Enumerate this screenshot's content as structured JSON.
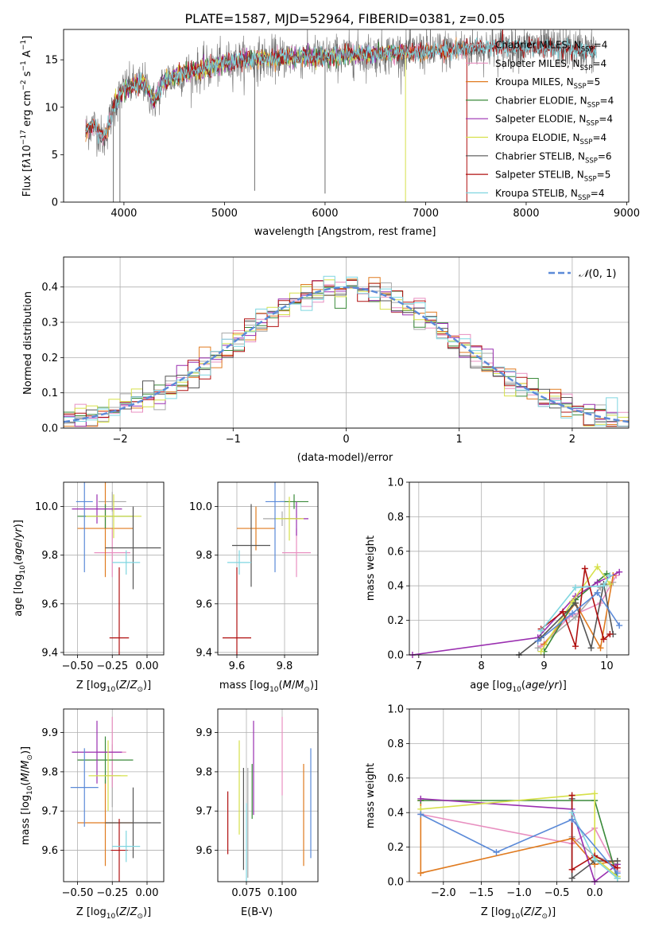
{
  "figure_title": "PLATE=1587, MJD=52964, FIBERID=0381, z=0.05",
  "colors": {
    "Chabrier MILES": "#a9a9a9",
    "Salpeter MILES": "#e88fc0",
    "Kroupa MILES": "#e07b20",
    "Chabrier ELODIE": "#3a8a3a",
    "Salpeter ELODIE": "#9a2fb0",
    "Kroupa ELODIE": "#d6e04a",
    "Chabrier STELIB": "#555555",
    "Salpeter STELIB": "#b01010",
    "Kroupa STELIB": "#7fd6e0",
    "normal": "#5b8ad8",
    "grid": "#b0b0b0"
  },
  "chart_data": [
    {
      "id": "spectrum",
      "type": "line",
      "xlabel": "wavelength [Angstrom, rest frame]",
      "ylabel": "Flux [f_λ10^-17 erg cm^-2 s^-1 A^-1]",
      "xlim": [
        3400,
        9020
      ],
      "ylim": [
        0,
        18.2
      ],
      "xticks": [
        4000,
        5000,
        6000,
        7000,
        8000,
        9000
      ],
      "yticks": [
        0,
        5,
        10,
        15
      ],
      "grid": false,
      "legend_position": "upper right",
      "legend": [
        {
          "name": "Chabrier MILES",
          "nssp": "4"
        },
        {
          "name": "Salpeter MILES",
          "nssp": "4"
        },
        {
          "name": "Kroupa MILES",
          "nssp": "5"
        },
        {
          "name": "Chabrier ELODIE",
          "nssp": "4"
        },
        {
          "name": "Salpeter ELODIE",
          "nssp": "4"
        },
        {
          "name": "Kroupa ELODIE",
          "nssp": "4"
        },
        {
          "name": "Chabrier STELIB",
          "nssp": "6"
        },
        {
          "name": "Salpeter STELIB",
          "nssp": "5"
        },
        {
          "name": "Kroupa STELIB",
          "nssp": "4"
        }
      ],
      "continuum": {
        "x": [
          3620,
          3700,
          3800,
          3900,
          4000,
          4100,
          4200,
          4300,
          4400,
          4600,
          4800,
          5000,
          5200,
          5400,
          5600,
          5800,
          6000,
          6200,
          6400,
          6600,
          6800,
          7000,
          7200,
          7400,
          7600,
          7800,
          8000,
          8200,
          8400,
          8600,
          8700
        ],
        "y": [
          7.5,
          8.2,
          6.5,
          10.0,
          12.0,
          12.2,
          12.6,
          10.5,
          12.8,
          13.6,
          14.0,
          14.6,
          15.0,
          15.1,
          15.3,
          15.3,
          15.3,
          15.5,
          15.6,
          15.7,
          15.8,
          15.9,
          16.0,
          16.2,
          16.3,
          16.4,
          16.4,
          16.3,
          16.2,
          16.0,
          15.9
        ]
      },
      "model_ranges": {
        "MILES": [
          3620,
          7410
        ],
        "ELODIE": [
          3900,
          6800
        ],
        "STELIB": [
          3620,
          8700
        ]
      },
      "artifacts": [
        {
          "x": 3895,
          "y_min": 0
        },
        {
          "x": 3960,
          "y_min": 0
        },
        {
          "x": 5300,
          "y_min": 1.2
        },
        {
          "x": 6000,
          "y_min": 0.9
        },
        {
          "x": 6800,
          "y_min": 0
        },
        {
          "x": 7410,
          "y_min": 0
        }
      ]
    },
    {
      "id": "residual-histogram",
      "type": "bar",
      "xlabel": "(data-model)/error",
      "ylabel": "Normed distribution",
      "xlim": [
        -2.5,
        2.5
      ],
      "ylim": [
        0,
        0.485
      ],
      "xticks": [
        -2,
        -1,
        0,
        1,
        2
      ],
      "yticks": [
        0.0,
        0.1,
        0.2,
        0.3,
        0.4
      ],
      "grid": true,
      "bin_width": 0.1,
      "legend_position": "upper right",
      "normal_label": "N(0,1)",
      "model_order": [
        "Chabrier MILES",
        "Salpeter MILES",
        "Kroupa MILES",
        "Chabrier ELODIE",
        "Salpeter ELODIE",
        "Kroupa ELODIE",
        "Chabrier STELIB",
        "Salpeter STELIB",
        "Kroupa STELIB"
      ]
    },
    {
      "id": "age-vs-z",
      "type": "scatter",
      "xlabel": "Z [log10(Z/Z_sun)]",
      "ylabel": "age [log10(age/yr)]",
      "xlim": [
        -0.6,
        0.12
      ],
      "ylim": [
        9.39,
        10.1
      ],
      "xticks": [
        -0.5,
        -0.25,
        0.0
      ],
      "yticks": [
        9.4,
        9.6,
        9.8,
        10.0
      ],
      "grid": true,
      "points": [
        {
          "model": "Chabrier MILES",
          "x": -0.25,
          "y": 10.02,
          "xerr": 0.1,
          "yerr": 0.04
        },
        {
          "model": "Salpeter MILES",
          "x": -0.25,
          "y": 9.81,
          "xerr": 0.13,
          "yerr": 0.1
        },
        {
          "model": "Kroupa MILES",
          "x": -0.3,
          "y": 9.91,
          "xerr": 0.2,
          "yerr": 0.2
        },
        {
          "model": "Chabrier ELODIE",
          "x": -0.3,
          "y": 9.96,
          "xerr": 0.2,
          "yerr": 0.05
        },
        {
          "model": "Salpeter ELODIE",
          "x": -0.36,
          "y": 9.99,
          "xerr": 0.18,
          "yerr": 0.06
        },
        {
          "model": "Kroupa ELODIE",
          "x": -0.24,
          "y": 9.96,
          "xerr": 0.2,
          "yerr": 0.09
        },
        {
          "model": "Chabrier STELIB",
          "x": -0.1,
          "y": 9.83,
          "xerr": 0.2,
          "yerr": 0.17
        },
        {
          "model": "Salpeter STELIB",
          "x": -0.2,
          "y": 9.46,
          "xerr": 0.07,
          "yerr": 0.29
        },
        {
          "model": "Kroupa STELIB",
          "x": -0.15,
          "y": 9.77,
          "xerr": 0.1,
          "yerr": 0.05
        },
        {
          "model": "Normal",
          "x": -0.45,
          "y": 10.02,
          "xerr": 0.06,
          "yerr": 0.29
        }
      ]
    },
    {
      "id": "age-vs-mass",
      "type": "scatter",
      "xlabel": "mass [log10(M/M_sun)]",
      "ylabel": "",
      "xlim": [
        9.52,
        9.94
      ],
      "ylim": [
        9.39,
        10.1
      ],
      "xticks": [
        9.6,
        9.8
      ],
      "yticks": [
        9.4,
        9.6,
        9.8,
        10.0
      ],
      "grid": true,
      "points": [
        {
          "model": "Chabrier MILES",
          "x": 9.79,
          "y": 9.95,
          "xerr": 0.08,
          "yerr": 0.03
        },
        {
          "model": "Salpeter MILES",
          "x": 9.85,
          "y": 9.81,
          "xerr": 0.06,
          "yerr": 0.1
        },
        {
          "model": "Kroupa MILES",
          "x": 9.68,
          "y": 9.91,
          "xerr": 0.08,
          "yerr": 0.09
        },
        {
          "model": "Chabrier ELODIE",
          "x": 9.84,
          "y": 10.02,
          "xerr": 0.06,
          "yerr": 0.03
        },
        {
          "model": "Salpeter ELODIE",
          "x": 9.85,
          "y": 9.95,
          "xerr": 0.05,
          "yerr": 0.07
        },
        {
          "model": "Kroupa ELODIE",
          "x": 9.82,
          "y": 9.95,
          "xerr": 0.06,
          "yerr": 0.09
        },
        {
          "model": "Chabrier STELIB",
          "x": 9.66,
          "y": 9.84,
          "xerr": 0.08,
          "yerr": 0.17
        },
        {
          "model": "Salpeter STELIB",
          "x": 9.6,
          "y": 9.46,
          "xerr": 0.06,
          "yerr": 0.29
        },
        {
          "model": "Kroupa STELIB",
          "x": 9.61,
          "y": 9.77,
          "xerr": 0.05,
          "yerr": 0.05
        },
        {
          "model": "Normal",
          "x": 9.76,
          "y": 10.02,
          "xerr": 0.04,
          "yerr": 0.29
        }
      ]
    },
    {
      "id": "mass-weight-vs-age",
      "type": "line",
      "xlabel": "age [log10(age/yr)]",
      "ylabel": "mass weight",
      "xlim": [
        6.85,
        10.35
      ],
      "ylim": [
        0,
        1.0
      ],
      "xticks": [
        7,
        8,
        9,
        10
      ],
      "yticks": [
        0.0,
        0.2,
        0.4,
        0.6,
        0.8,
        1.0
      ],
      "grid": true,
      "series": [
        {
          "model": "Chabrier MILES",
          "x": [
            8.9,
            9.5,
            9.9,
            10.1
          ],
          "y": [
            0.04,
            0.22,
            0.39,
            0.42
          ]
        },
        {
          "model": "Salpeter MILES",
          "x": [
            8.95,
            9.4,
            9.9,
            10.15
          ],
          "y": [
            0.05,
            0.22,
            0.3,
            0.46
          ]
        },
        {
          "model": "Kroupa MILES",
          "x": [
            9.0,
            9.5,
            9.9,
            10.1
          ],
          "y": [
            0.06,
            0.3,
            0.04,
            0.46
          ]
        },
        {
          "model": "Chabrier ELODIE",
          "x": [
            9.0,
            9.5,
            10.0
          ],
          "y": [
            0.02,
            0.32,
            0.47
          ]
        },
        {
          "model": "Salpeter ELODIE",
          "x": [
            6.9,
            8.9,
            9.5,
            9.85,
            10.2
          ],
          "y": [
            0.0,
            0.1,
            0.34,
            0.42,
            0.48
          ]
        },
        {
          "model": "Kroupa ELODIE",
          "x": [
            8.95,
            9.45,
            9.85,
            10.05
          ],
          "y": [
            0.02,
            0.31,
            0.51,
            0.41
          ]
        },
        {
          "model": "Chabrier STELIB",
          "x": [
            8.6,
            8.95,
            9.5,
            9.75,
            9.95,
            10.1
          ],
          "y": [
            0.0,
            0.1,
            0.3,
            0.04,
            0.41,
            0.12
          ]
        },
        {
          "model": "Salpeter STELIB",
          "x": [
            8.95,
            9.3,
            9.5,
            9.65,
            9.95,
            10.05
          ],
          "y": [
            0.15,
            0.25,
            0.05,
            0.5,
            0.09,
            0.12
          ]
        },
        {
          "model": "Kroupa STELIB",
          "x": [
            8.95,
            9.5,
            9.95,
            10.05
          ],
          "y": [
            0.14,
            0.39,
            0.4,
            0.46
          ]
        },
        {
          "model": "Normal",
          "x": [
            8.9,
            9.45,
            9.85,
            10.2
          ],
          "y": [
            0.08,
            0.24,
            0.36,
            0.17
          ]
        }
      ]
    },
    {
      "id": "mass-vs-z",
      "type": "scatter",
      "xlabel": "Z [log10(Z/Z_sun)]",
      "ylabel": "mass [log10(M/M_sun)]",
      "xlim": [
        -0.6,
        0.12
      ],
      "ylim": [
        9.52,
        9.96
      ],
      "xticks": [
        -0.5,
        -0.25,
        0.0
      ],
      "yticks": [
        9.6,
        9.7,
        9.8,
        9.9
      ],
      "grid": true,
      "points": [
        {
          "model": "Chabrier MILES",
          "x": -0.25,
          "y": 9.79,
          "xerr": 0.06,
          "yerr": 0.08
        },
        {
          "model": "Salpeter MILES",
          "x": -0.25,
          "y": 9.85,
          "xerr": 0.1,
          "yerr": 0.09
        },
        {
          "model": "Kroupa MILES",
          "x": -0.3,
          "y": 9.67,
          "xerr": 0.2,
          "yerr": 0.11
        },
        {
          "model": "Chabrier ELODIE",
          "x": -0.3,
          "y": 9.83,
          "xerr": 0.2,
          "yerr": 0.06
        },
        {
          "model": "Salpeter ELODIE",
          "x": -0.36,
          "y": 9.85,
          "xerr": 0.18,
          "yerr": 0.08
        },
        {
          "model": "Kroupa ELODIE",
          "x": -0.28,
          "y": 9.79,
          "xerr": 0.14,
          "yerr": 0.09
        },
        {
          "model": "Chabrier STELIB",
          "x": -0.1,
          "y": 9.67,
          "xerr": 0.2,
          "yerr": 0.09
        },
        {
          "model": "Salpeter STELIB",
          "x": -0.2,
          "y": 9.6,
          "xerr": 0.06,
          "yerr": 0.08
        },
        {
          "model": "Kroupa STELIB",
          "x": -0.15,
          "y": 9.61,
          "xerr": 0.1,
          "yerr": 0.04
        },
        {
          "model": "Normal",
          "x": -0.45,
          "y": 9.76,
          "xerr": 0.1,
          "yerr": 0.1
        }
      ]
    },
    {
      "id": "mass-vs-ebv",
      "type": "scatter",
      "xlabel": "E(B-V)",
      "ylabel": "",
      "xlim": [
        0.055,
        0.125
      ],
      "ylim": [
        9.52,
        9.96
      ],
      "xticks": [
        0.075,
        0.1
      ],
      "yticks": [
        9.6,
        9.7,
        9.8,
        9.9
      ],
      "grid": true,
      "points": [
        {
          "model": "Chabrier MILES",
          "x": 0.076,
          "y": 9.67,
          "xerr": 0,
          "yerr": 0.14
        },
        {
          "model": "Salpeter MILES",
          "x": 0.1,
          "y": 9.84,
          "xerr": 0,
          "yerr": 0.1
        },
        {
          "model": "Kroupa MILES",
          "x": 0.115,
          "y": 9.69,
          "xerr": 0,
          "yerr": 0.13
        },
        {
          "model": "Chabrier ELODIE",
          "x": 0.079,
          "y": 9.75,
          "xerr": 0,
          "yerr": 0.07
        },
        {
          "model": "Salpeter ELODIE",
          "x": 0.08,
          "y": 9.81,
          "xerr": 0,
          "yerr": 0.12
        },
        {
          "model": "Kroupa ELODIE",
          "x": 0.07,
          "y": 9.76,
          "xerr": 0,
          "yerr": 0.12
        },
        {
          "model": "Chabrier STELIB",
          "x": 0.073,
          "y": 9.68,
          "xerr": 0,
          "yerr": 0.13
        },
        {
          "model": "Salpeter STELIB",
          "x": 0.062,
          "y": 9.67,
          "xerr": 0,
          "yerr": 0.08
        },
        {
          "model": "Kroupa STELIB",
          "x": 0.075,
          "y": 9.62,
          "xerr": 0,
          "yerr": 0.1
        },
        {
          "model": "Normal",
          "x": 0.12,
          "y": 9.72,
          "xerr": 0,
          "yerr": 0.14
        }
      ]
    },
    {
      "id": "mass-weight-vs-z",
      "type": "line",
      "xlabel": "Z [log10(Z/Z_sun)]",
      "ylabel": "mass weight",
      "xlim": [
        -2.45,
        0.45
      ],
      "ylim": [
        0,
        1.0
      ],
      "xticks": [
        -2.0,
        -1.5,
        -1.0,
        -0.5,
        0.0
      ],
      "yticks": [
        0.0,
        0.2,
        0.4,
        0.6,
        0.8,
        1.0
      ],
      "grid": true,
      "series": [
        {
          "model": "Chabrier MILES",
          "x": [
            -0.3,
            0.0,
            0.3
          ],
          "y": [
            0.26,
            0.15,
            0.1
          ]
        },
        {
          "model": "Salpeter MILES",
          "x": [
            -2.3,
            -0.3,
            0.0,
            0.3
          ],
          "y": [
            0.39,
            0.22,
            0.31,
            0.06
          ]
        },
        {
          "model": "Kroupa MILES",
          "x": [
            -2.3,
            -2.3,
            -0.3,
            0.0,
            0.3
          ],
          "y": [
            0.47,
            0.05,
            0.25,
            0.1,
            0.12
          ]
        },
        {
          "model": "Chabrier ELODIE",
          "x": [
            -2.3,
            0.0,
            0.3
          ],
          "y": [
            0.47,
            0.47,
            0.02
          ]
        },
        {
          "model": "Salpeter ELODIE",
          "x": [
            -2.3,
            -0.3,
            0.0,
            0.3
          ],
          "y": [
            0.48,
            0.42,
            0.0,
            0.1
          ]
        },
        {
          "model": "Kroupa ELODIE",
          "x": [
            -2.3,
            0.0,
            0.0,
            0.3
          ],
          "y": [
            0.42,
            0.51,
            0.14,
            0.03
          ]
        },
        {
          "model": "Chabrier STELIB",
          "x": [
            -0.3,
            -0.3,
            0.0,
            0.3
          ],
          "y": [
            0.48,
            0.02,
            0.12,
            0.12
          ]
        },
        {
          "model": "Salpeter STELIB",
          "x": [
            -0.3,
            -0.3,
            0.0,
            0.3
          ],
          "y": [
            0.5,
            0.07,
            0.15,
            0.08
          ]
        },
        {
          "model": "Kroupa STELIB",
          "x": [
            -0.3,
            0.0,
            0.3
          ],
          "y": [
            0.4,
            0.13,
            0.02
          ]
        },
        {
          "model": "Normal",
          "x": [
            -2.3,
            -1.3,
            -0.3,
            0.3
          ],
          "y": [
            0.39,
            0.17,
            0.36,
            0.05
          ]
        }
      ]
    }
  ]
}
